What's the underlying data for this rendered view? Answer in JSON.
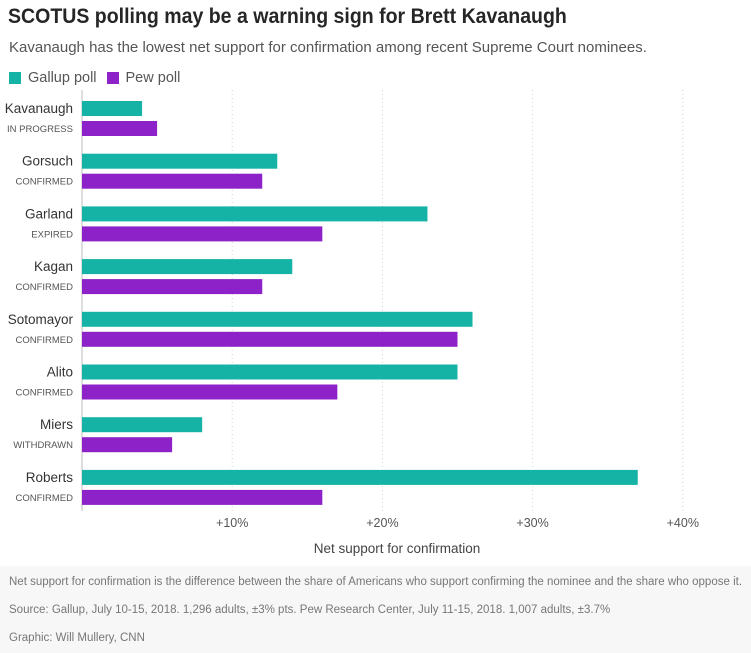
{
  "title": "SCOTUS polling may be a warning sign for Brett Kavanaugh",
  "subtitle": "Kavanaugh has the lowest net support for confirmation among recent Supreme Court nominees.",
  "legend": [
    {
      "label": "Gallup poll",
      "color": "#14b3a6"
    },
    {
      "label": "Pew poll",
      "color": "#8c22c8"
    }
  ],
  "chart_data": {
    "type": "bar",
    "orientation": "horizontal",
    "categories": [
      "Kavanaugh",
      "Gorsuch",
      "Garland",
      "Kagan",
      "Sotomayor",
      "Alito",
      "Miers",
      "Roberts"
    ],
    "category_status": [
      "IN PROGRESS",
      "CONFIRMED",
      "EXPIRED",
      "CONFIRMED",
      "CONFIRMED",
      "CONFIRMED",
      "WITHDRAWN",
      "CONFIRMED"
    ],
    "series": [
      {
        "name": "Gallup poll",
        "color": "#14b3a6",
        "values": [
          4,
          13,
          23,
          14,
          26,
          25,
          8,
          37
        ]
      },
      {
        "name": "Pew poll",
        "color": "#8c22c8",
        "values": [
          5,
          12,
          16,
          12,
          25,
          17,
          6,
          16
        ]
      }
    ],
    "xlabel": "Net support for confirmation",
    "ylabel": "",
    "xlim": [
      0,
      44.5
    ],
    "xticks": [
      10,
      20,
      30,
      40
    ],
    "xtick_labels": [
      "+10%",
      "+20%",
      "+30%",
      "+40%"
    ],
    "grid": "vertical dotted",
    "legend_position": "top-left"
  },
  "footer": {
    "note": "Net support for confirmation is the difference between the share of Americans who support confirming the nominee and the share who oppose it.",
    "source": "Source: Gallup, July 10-15, 2018. 1,296 adults, ±3% pts. Pew Research Center, July 11-15, 2018. 1,007 adults, ±3.7%",
    "credit": "Graphic: Will Mullery, CNN"
  }
}
